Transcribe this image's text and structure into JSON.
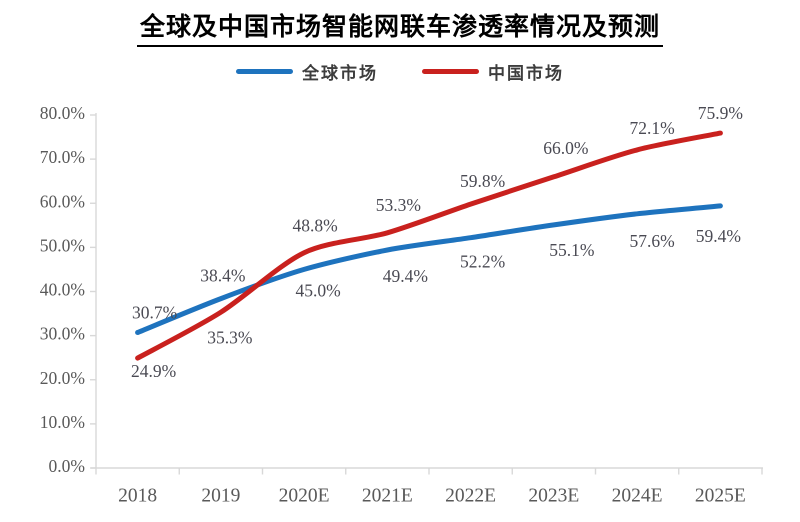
{
  "title": "全球及中国市场智能网联车渗透率情况及预测",
  "chart_data": {
    "type": "line",
    "title": "全球及中国市场智能网联车渗透率情况及预测",
    "categories": [
      "2018",
      "2019",
      "2020E",
      "2021E",
      "2022E",
      "2023E",
      "2024E",
      "2025E"
    ],
    "series": [
      {
        "name": "全球市场",
        "color": "#1E73BE",
        "values": [
          30.7,
          38.4,
          45.0,
          49.4,
          52.2,
          55.1,
          57.6,
          59.4
        ],
        "labels": [
          "30.7%",
          "38.4%",
          "45.0%",
          "49.4%",
          "52.2%",
          "55.1%",
          "57.6%",
          "59.4%"
        ],
        "label_position": [
          "above",
          "above",
          "below",
          "below",
          "below",
          "below",
          "below",
          "below"
        ]
      },
      {
        "name": "中国市场",
        "color": "#C9211E",
        "values": [
          24.9,
          35.3,
          48.8,
          53.3,
          59.8,
          66.0,
          72.1,
          75.9
        ],
        "labels": [
          "24.9%",
          "35.3%",
          "48.8%",
          "53.3%",
          "59.8%",
          "66.0%",
          "72.1%",
          "75.9%"
        ],
        "label_position": [
          "below",
          "below",
          "above",
          "above",
          "above",
          "above",
          "above",
          "above"
        ]
      }
    ],
    "y_axis": {
      "min": 0,
      "max": 80,
      "tick_labels": [
        "0.0%",
        "10.0%",
        "20.0%",
        "30.0%",
        "40.0%",
        "50.0%",
        "60.0%",
        "70.0%",
        "80.0%"
      ]
    },
    "grid": false,
    "legend_position": "top",
    "smoothed_lines": true
  },
  "colors": {
    "axis_line": "#d8d8d8",
    "axis_text": "#595959",
    "data_label_text": "#4a4a53",
    "title_text": "#000000"
  }
}
